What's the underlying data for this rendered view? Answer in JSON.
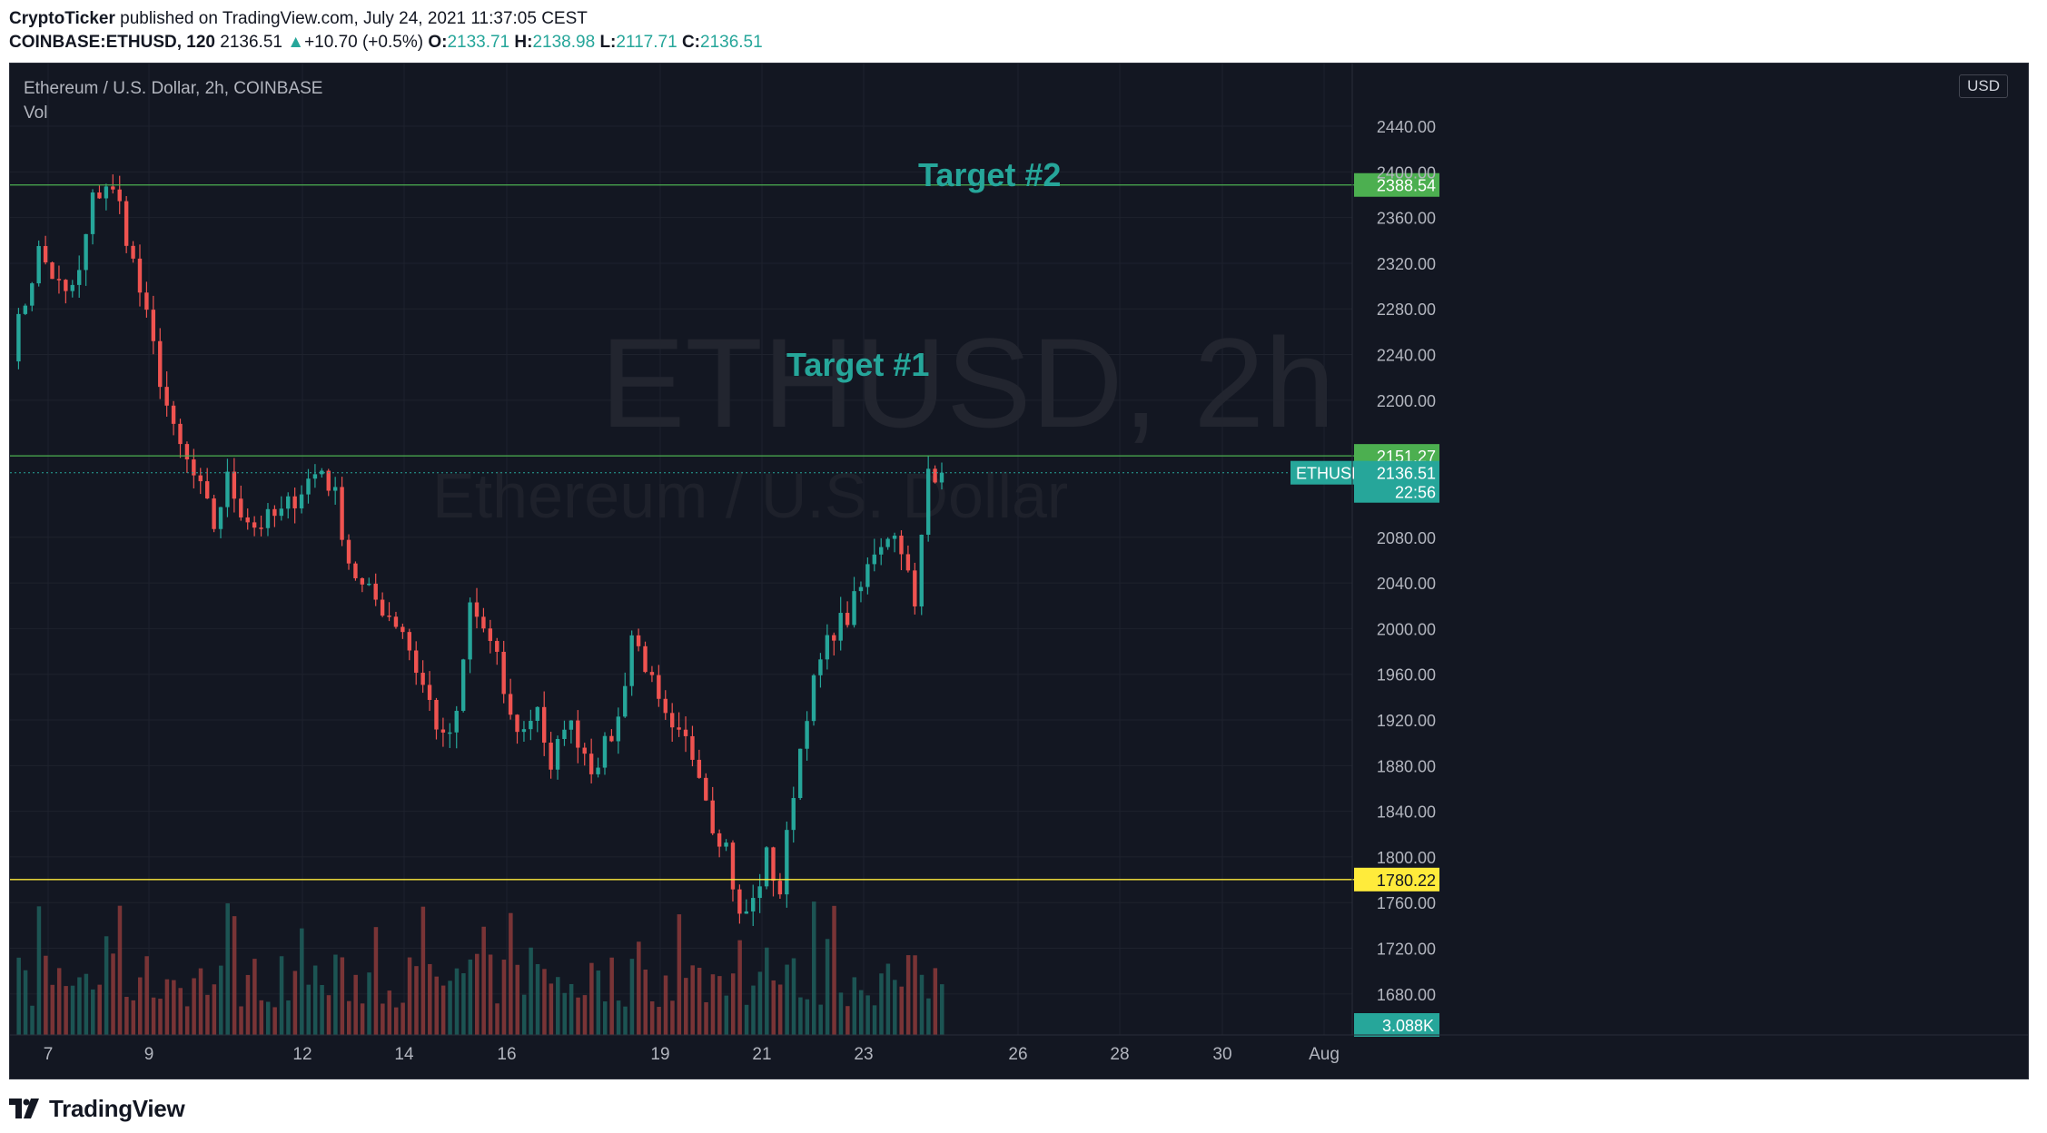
{
  "header": {
    "publisher": "CryptoTicker",
    "published_text": " published on TradingView.com, July 24, 2021 11:37:05 CEST",
    "symbol": "COINBASE:ETHUSD, 120",
    "last_price": "2136.51",
    "change": "+10.70 (+0.5%)",
    "o_label": "O:",
    "o_value": "2133.71",
    "h_label": "H:",
    "h_value": "2138.98",
    "l_label": "L:",
    "l_value": "2117.71",
    "c_label": "C:",
    "c_value": "2136.51"
  },
  "legend": {
    "title": "Ethereum / U.S. Dollar, 2h, COINBASE",
    "indicator": "Vol"
  },
  "currency_badge": "USD",
  "watermark": {
    "main": "ETHUSD, 2h",
    "sub": "Ethereum / U.S. Dollar"
  },
  "footer": {
    "brand": "TradingView"
  },
  "colors": {
    "background": "#131722",
    "up": "#26a69a",
    "down": "#ef5350",
    "green_line": "#4caf50",
    "yellow_line": "#ffeb3b",
    "annotation": "#26a69a"
  },
  "icons": {
    "brand_logo": "tradingview-logo-icon",
    "last_price_marker": "up-triangle-icon"
  },
  "chart_data": {
    "type": "candlestick",
    "y_axis": {
      "ticks": [
        "2440.00",
        "2400.00",
        "2360.00",
        "2320.00",
        "2280.00",
        "2240.00",
        "2200.00",
        "2080.00",
        "2040.00",
        "2000.00",
        "1960.00",
        "1920.00",
        "1880.00",
        "1840.00",
        "1800.00",
        "1760.00",
        "1720.00",
        "1680.00"
      ],
      "ylim": [
        1660,
        2475
      ]
    },
    "x_axis": {
      "ticks": [
        "7",
        "9",
        "12",
        "14",
        "16",
        "19",
        "21",
        "23",
        "26",
        "28",
        "30",
        "Aug"
      ]
    },
    "horizontal_lines": [
      {
        "value": 2388.54,
        "label": "2388.54",
        "color": "#4caf50"
      },
      {
        "value": 2151.27,
        "label": "2151.27",
        "color": "#4caf50"
      },
      {
        "value": 1780.22,
        "label": "1780.22",
        "color": "#ffeb3b"
      }
    ],
    "annotations": [
      {
        "text": "Target #2"
      },
      {
        "text": "Target #1"
      }
    ],
    "last_price": {
      "symbol": "ETHUSD",
      "value": "2136.51",
      "countdown": "22:56"
    },
    "volume_label": "3.088K",
    "price_path": [
      [
        0,
        2245
      ],
      [
        4,
        2330
      ],
      [
        8,
        2290
      ],
      [
        10,
        2310
      ],
      [
        12,
        2375
      ],
      [
        14,
        2390
      ],
      [
        16,
        2370
      ],
      [
        20,
        2270
      ],
      [
        24,
        2170
      ],
      [
        28,
        2120
      ],
      [
        30,
        2090
      ],
      [
        32,
        2130
      ],
      [
        34,
        2105
      ],
      [
        36,
        2090
      ],
      [
        40,
        2100
      ],
      [
        44,
        2130
      ],
      [
        46,
        2140
      ],
      [
        48,
        2115
      ],
      [
        50,
        2060
      ],
      [
        52,
        2035
      ],
      [
        54,
        2025
      ],
      [
        58,
        2000
      ],
      [
        60,
        1965
      ],
      [
        62,
        1935
      ],
      [
        64,
        1900
      ],
      [
        66,
        1920
      ],
      [
        68,
        2020
      ],
      [
        70,
        2000
      ],
      [
        72,
        1970
      ],
      [
        74,
        1920
      ],
      [
        76,
        1910
      ],
      [
        78,
        1935
      ],
      [
        80,
        1870
      ],
      [
        82,
        1920
      ],
      [
        84,
        1905
      ],
      [
        86,
        1880
      ],
      [
        88,
        1895
      ],
      [
        90,
        1920
      ],
      [
        92,
        1995
      ],
      [
        94,
        1970
      ],
      [
        96,
        1930
      ],
      [
        98,
        1905
      ],
      [
        100,
        1900
      ],
      [
        102,
        1880
      ],
      [
        104,
        1830
      ],
      [
        106,
        1810
      ],
      [
        108,
        1745
      ],
      [
        110,
        1760
      ],
      [
        112,
        1800
      ],
      [
        114,
        1770
      ],
      [
        116,
        1860
      ],
      [
        118,
        1930
      ],
      [
        120,
        1970
      ],
      [
        122,
        2000
      ],
      [
        124,
        2010
      ],
      [
        126,
        2035
      ],
      [
        128,
        2070
      ],
      [
        130,
        2085
      ],
      [
        132,
        2075
      ],
      [
        134,
        2015
      ],
      [
        136,
        2140
      ],
      [
        138,
        2136.51
      ]
    ]
  }
}
